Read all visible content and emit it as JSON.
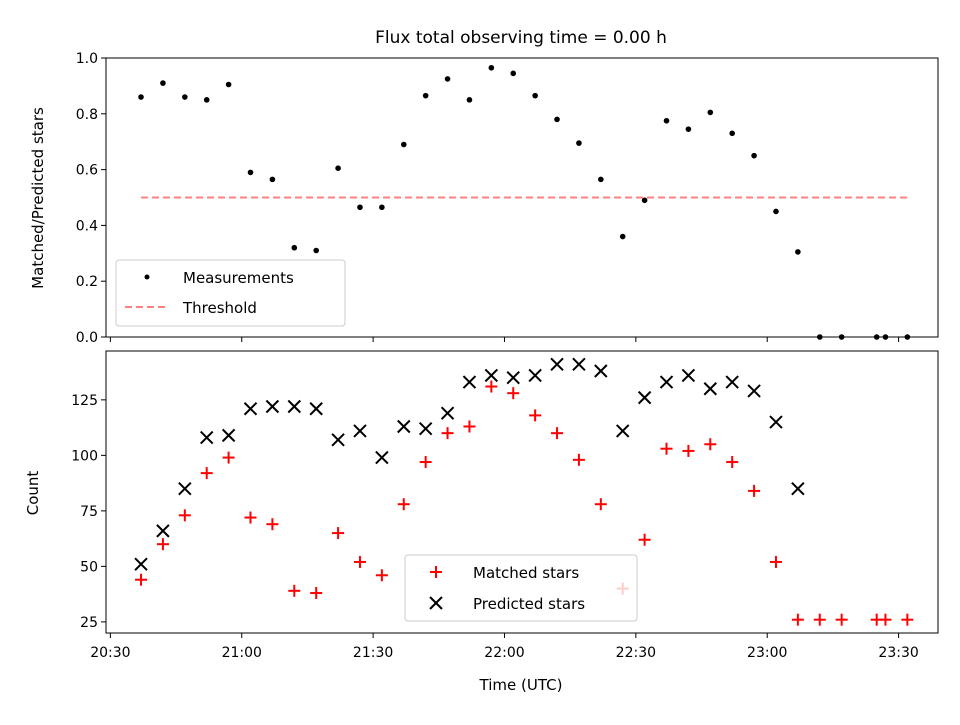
{
  "chart_data": [
    {
      "type": "scatter",
      "title": "Flux total observing time = 0.00 h",
      "xlabel": "",
      "ylabel": "Matched/Predicted stars",
      "xlim": [
        "20:29",
        "23:39"
      ],
      "ylim": [
        0,
        1.0
      ],
      "yticks": [
        "0.0",
        "0.2",
        "0.4",
        "0.6",
        "0.8",
        "1.0"
      ],
      "legend": "lower-left",
      "series": [
        {
          "name": "Measurements",
          "marker": "dot",
          "color": "#000000",
          "x": [
            "20:37",
            "20:42",
            "20:47",
            "20:52",
            "20:57",
            "21:02",
            "21:07",
            "21:12",
            "21:17",
            "21:22",
            "21:27",
            "21:32",
            "21:37",
            "21:42",
            "21:47",
            "21:52",
            "21:57",
            "22:02",
            "22:07",
            "22:12",
            "22:17",
            "22:22",
            "22:27",
            "22:32",
            "22:37",
            "22:42",
            "22:47",
            "22:52",
            "22:57",
            "23:02",
            "23:07",
            "23:12",
            "23:17",
            "23:25",
            "23:27",
            "23:32"
          ],
          "y": [
            0.86,
            0.91,
            0.86,
            0.85,
            0.905,
            0.59,
            0.565,
            0.32,
            0.31,
            0.605,
            0.465,
            0.465,
            0.69,
            0.865,
            0.925,
            0.85,
            0.965,
            0.945,
            0.865,
            0.78,
            0.695,
            0.565,
            0.36,
            0.49,
            0.775,
            0.745,
            0.805,
            0.73,
            0.65,
            0.45,
            0.305,
            0.0,
            0.0,
            0.0,
            0.0,
            0.0
          ]
        },
        {
          "name": "Threshold",
          "style": "dashed",
          "color": "#ff8080",
          "x": [
            "20:37",
            "23:32"
          ],
          "y": [
            0.5,
            0.5
          ]
        }
      ]
    },
    {
      "type": "scatter",
      "title": "",
      "xlabel": "Time (UTC)",
      "ylabel": "Count",
      "xlim": [
        "20:29",
        "23:39"
      ],
      "ylim": [
        20,
        147
      ],
      "xticks": [
        "20:30",
        "21:00",
        "21:30",
        "22:00",
        "22:30",
        "23:00",
        "23:30"
      ],
      "yticks": [
        "25",
        "50",
        "75",
        "100",
        "125"
      ],
      "legend": "lower-center",
      "series": [
        {
          "name": "Matched stars",
          "marker": "plus",
          "color": "#ff0000",
          "x": [
            "20:37",
            "20:42",
            "20:47",
            "20:52",
            "20:57",
            "21:02",
            "21:07",
            "21:12",
            "21:17",
            "21:22",
            "21:27",
            "21:32",
            "21:37",
            "21:42",
            "21:47",
            "21:52",
            "21:57",
            "22:02",
            "22:07",
            "22:12",
            "22:17",
            "22:22",
            "22:27",
            "22:32",
            "22:37",
            "22:42",
            "22:47",
            "22:52",
            "22:57",
            "23:02",
            "23:07",
            "23:12",
            "23:17",
            "23:25",
            "23:27",
            "23:32"
          ],
          "y": [
            44,
            60,
            73,
            92,
            99,
            72,
            69,
            39,
            38,
            65,
            52,
            46,
            78,
            97,
            110,
            113,
            131,
            128,
            118,
            110,
            98,
            78,
            40,
            62,
            103,
            102,
            105,
            97,
            84,
            52,
            26,
            26,
            26,
            26,
            26,
            26
          ]
        },
        {
          "name": "Predicted stars",
          "marker": "x",
          "color": "#000000",
          "x": [
            "20:37",
            "20:42",
            "20:47",
            "20:52",
            "20:57",
            "21:02",
            "21:07",
            "21:12",
            "21:17",
            "21:22",
            "21:27",
            "21:32",
            "21:37",
            "21:42",
            "21:47",
            "21:52",
            "21:57",
            "22:02",
            "22:07",
            "22:12",
            "22:17",
            "22:22",
            "22:27",
            "22:32",
            "22:37",
            "22:42",
            "22:47",
            "22:52",
            "22:57",
            "23:02",
            "23:07"
          ],
          "y": [
            51,
            66,
            85,
            108,
            109,
            121,
            122,
            122,
            121,
            107,
            111,
            99,
            113,
            112,
            119,
            133,
            136,
            135,
            136,
            141,
            141,
            138,
            111,
            126,
            133,
            136,
            130,
            133,
            129,
            115,
            85
          ]
        }
      ]
    }
  ]
}
